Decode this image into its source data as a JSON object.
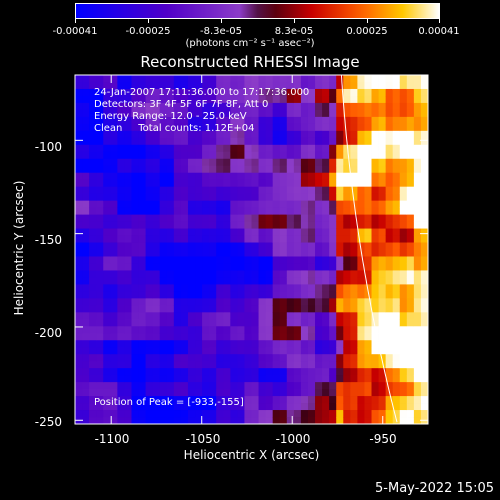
{
  "chart_data": {
    "type": "heatmap",
    "title": "Reconstructed RHESSI Image",
    "xlabel": "Heliocentric X (arcsec)",
    "ylabel": "Heliocentric Y (arcsec)",
    "xlim": [
      -1120,
      -925
    ],
    "ylim": [
      -252,
      -65
    ],
    "x_ticks": [
      "-1100",
      "-1050",
      "-1000",
      "-950"
    ],
    "x_tick_values": [
      -1100,
      -1050,
      -1000,
      -950
    ],
    "y_ticks": [
      "-100",
      "-150",
      "-200",
      "-250"
    ],
    "y_tick_values": [
      -100,
      -150,
      -200,
      -250
    ],
    "colorbar": {
      "ticks": [
        "-0.00041",
        "-0.00025",
        "-8.3e-05",
        "8.3e-05",
        "0.00025",
        "0.00041"
      ],
      "units": "(photons cm⁻² s⁻¹ asec⁻²)",
      "range": [
        -0.00041,
        0.00041
      ]
    },
    "annotations": {
      "time_range": "24-Jan-2007 17:11:36.000 to 17:17:36.000",
      "detectors": "Detectors: 3F 4F 5F 6F 7F 8F, Att 0",
      "energy": "Energy Range: 12.0 - 25.0 keV",
      "clean": "Clean     Total counts: 1.12E+04",
      "peak": "Position of Peak = [-933,-155]"
    },
    "peak_position": [
      -933,
      -155
    ]
  },
  "footer": {
    "date": "5-May-2022 15:05"
  },
  "colors": {
    "background": "#000000",
    "axes": "#ffffff",
    "limb": "#ffffff"
  }
}
